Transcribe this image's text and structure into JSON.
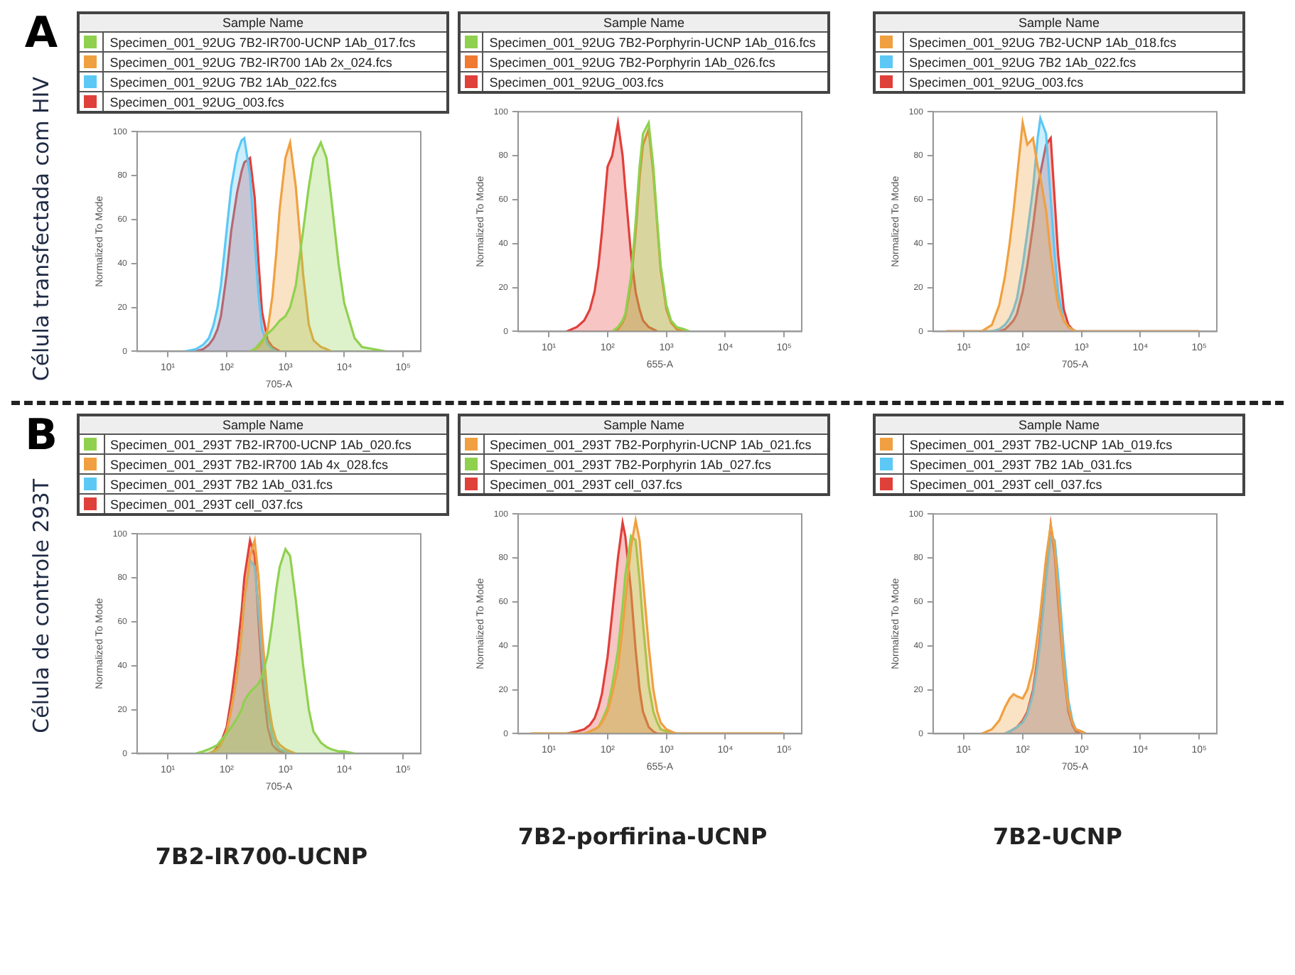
{
  "chart_data": [
    {
      "type": "area",
      "annotations": [
        "A",
        "Célula transfectada com HIV"
      ],
      "xlabel": "705-A",
      "ylabel": "Normalized To Mode",
      "legend": "top",
      "legend_title": "Sample Name",
      "log": "x",
      "xlim": [
        3,
        200000
      ],
      "xticks": [
        {
          "value": 10,
          "label": "10¹"
        },
        {
          "value": 100,
          "label": "10²"
        },
        {
          "value": 1000,
          "label": "10³"
        },
        {
          "value": 10000,
          "label": "10⁴"
        },
        {
          "value": 100000,
          "label": "10⁵"
        }
      ],
      "ylim": [
        0,
        100
      ],
      "yticks": [
        0,
        20,
        40,
        60,
        80,
        100
      ],
      "series": [
        {
          "name": "Specimen_001_92UG 7B2-IR700-UCNP 1Ab_017.fcs",
          "color": "#8fd14f",
          "x": [
            250,
            300,
            350,
            400,
            500,
            600,
            700,
            800,
            1000,
            1200,
            1500,
            2000,
            2500,
            3000,
            4000,
            5000,
            6000,
            8000,
            10000,
            15000,
            20000,
            50000
          ],
          "values": [
            0,
            1,
            3,
            5,
            8,
            10,
            12,
            14,
            16,
            20,
            30,
            55,
            75,
            88,
            95,
            88,
            70,
            40,
            22,
            6,
            2,
            0
          ]
        },
        {
          "name": "Specimen_001_92UG 7B2-IR700 1Ab 2x_024.fcs",
          "color": "#f0a040",
          "x": [
            250,
            300,
            350,
            400,
            500,
            600,
            700,
            800,
            1000,
            1200,
            1500,
            2000,
            2500,
            3000,
            4000,
            5000,
            6000
          ],
          "values": [
            0,
            1,
            2,
            4,
            10,
            25,
            45,
            65,
            88,
            95,
            75,
            35,
            12,
            5,
            2,
            1,
            0
          ]
        },
        {
          "name": "Specimen_001_92UG 7B2 1Ab_022.fcs",
          "color": "#5bc8f5",
          "x": [
            20,
            30,
            40,
            50,
            60,
            70,
            80,
            100,
            120,
            150,
            180,
            200,
            250,
            300,
            350,
            400,
            500,
            600,
            700
          ],
          "values": [
            0,
            1,
            3,
            6,
            12,
            20,
            30,
            55,
            75,
            90,
            96,
            97,
            80,
            50,
            25,
            10,
            3,
            1,
            0
          ]
        },
        {
          "name": "Specimen_001_92UG_003.fcs",
          "color": "#e0403a",
          "x": [
            30,
            40,
            50,
            60,
            70,
            80,
            100,
            120,
            150,
            180,
            200,
            250,
            300,
            350,
            400,
            500,
            600,
            700,
            800
          ],
          "values": [
            0,
            1,
            3,
            6,
            10,
            16,
            35,
            55,
            72,
            82,
            86,
            88,
            70,
            40,
            18,
            5,
            2,
            1,
            0
          ]
        }
      ]
    },
    {
      "type": "area",
      "xlabel": "655-A",
      "ylabel": "Normalized To Mode",
      "legend": "top",
      "legend_title": "Sample Name",
      "log": "x",
      "xlim": [
        3,
        200000
      ],
      "xticks": [
        {
          "value": 10,
          "label": "10¹"
        },
        {
          "value": 100,
          "label": "10²"
        },
        {
          "value": 1000,
          "label": "10³"
        },
        {
          "value": 10000,
          "label": "10⁴"
        },
        {
          "value": 100000,
          "label": "10⁵"
        }
      ],
      "ylim": [
        0,
        100
      ],
      "yticks": [
        0,
        20,
        40,
        60,
        80,
        100
      ],
      "series": [
        {
          "name": "Specimen_001_92UG 7B2-Porphyrin-UCNP 1Ab_016.fcs",
          "color": "#8fd14f",
          "x": [
            120,
            150,
            180,
            200,
            250,
            300,
            350,
            400,
            500,
            600,
            700,
            800,
            1000,
            1200,
            1500,
            2000,
            2500
          ],
          "values": [
            0,
            2,
            5,
            8,
            25,
            50,
            75,
            90,
            95,
            75,
            50,
            30,
            12,
            5,
            2,
            1,
            0
          ]
        },
        {
          "name": "Specimen_001_92UG 7B2-Porphyrin 1Ab_026.fcs",
          "color": "#f07a30",
          "x": [
            120,
            150,
            180,
            200,
            250,
            300,
            350,
            400,
            500,
            600,
            700,
            800,
            1000,
            1200,
            1500,
            2000
          ],
          "values": [
            0,
            1,
            4,
            7,
            22,
            45,
            70,
            85,
            92,
            72,
            48,
            28,
            10,
            4,
            1,
            0
          ]
        },
        {
          "name": "Specimen_001_92UG_003.fcs",
          "color": "#e0403a",
          "x": [
            20,
            30,
            40,
            50,
            60,
            70,
            80,
            100,
            120,
            150,
            180,
            200,
            250,
            300,
            350,
            400,
            500,
            600,
            700
          ],
          "values": [
            0,
            2,
            5,
            10,
            18,
            30,
            45,
            75,
            80,
            95,
            80,
            65,
            35,
            18,
            10,
            5,
            2,
            1,
            0
          ]
        }
      ]
    },
    {
      "type": "area",
      "xlabel": "705-A",
      "ylabel": "Normalized To Mode",
      "legend": "top",
      "legend_title": "Sample Name",
      "log": "x",
      "xlim": [
        3,
        200000
      ],
      "xticks": [
        {
          "value": 10,
          "label": "10¹"
        },
        {
          "value": 100,
          "label": "10²"
        },
        {
          "value": 1000,
          "label": "10³"
        },
        {
          "value": 10000,
          "label": "10⁴"
        },
        {
          "value": 100000,
          "label": "10⁵"
        }
      ],
      "ylim": [
        0,
        100
      ],
      "yticks": [
        0,
        20,
        40,
        60,
        80,
        100
      ],
      "x": [
        5,
        10,
        20,
        30,
        40,
        50,
        60,
        70,
        80,
        100,
        120,
        150,
        180,
        200,
        250,
        300,
        350,
        400,
        500,
        600,
        700,
        800,
        1000,
        1200,
        1500,
        2000,
        2500,
        3000,
        4000,
        5000,
        6000,
        8000,
        10000,
        15000,
        20000,
        50000,
        100000
      ],
      "series": [
        {
          "name": "Specimen_001_92UG 7B2-UCNP 1Ab_018.fcs",
          "color": "#f0a040",
          "values": [
            0,
            0,
            0,
            3,
            12,
            25,
            40,
            55,
            70,
            95,
            85,
            88,
            75,
            70,
            55,
            35,
            22,
            12,
            5,
            2,
            1,
            0,
            0,
            0,
            0,
            0,
            0,
            0,
            0,
            0,
            0,
            0,
            0,
            0,
            0,
            0,
            0
          ]
        },
        {
          "name": "Specimen_001_92UG 7B2 1Ab_022.fcs",
          "color": "#5bc8f5",
          "values": [
            0,
            0,
            0,
            0,
            1,
            3,
            6,
            10,
            15,
            30,
            45,
            65,
            88,
            97,
            90,
            60,
            35,
            18,
            5,
            2,
            1,
            0,
            0,
            0,
            0,
            0,
            0,
            0,
            0,
            0,
            0,
            0,
            0,
            0,
            0,
            0,
            0
          ]
        },
        {
          "name": "Specimen_001_92UG_003.fcs",
          "color": "#e0403a",
          "values": [
            0,
            0,
            0,
            0,
            0,
            1,
            3,
            5,
            8,
            18,
            30,
            48,
            65,
            72,
            85,
            88,
            60,
            35,
            10,
            3,
            1,
            0,
            0,
            0,
            0,
            0,
            0,
            0,
            0,
            0,
            0,
            0,
            0,
            0,
            0,
            0,
            0
          ]
        }
      ]
    },
    {
      "type": "area",
      "annotations": [
        "B",
        "Célula de controle 293T",
        "7B2-IR700-UCNP"
      ],
      "xlabel": "705-A",
      "ylabel": "Normalized To Mode",
      "legend": "top",
      "legend_title": "Sample Name",
      "log": "x",
      "xlim": [
        3,
        200000
      ],
      "xticks": [
        {
          "value": 10,
          "label": "10¹"
        },
        {
          "value": 100,
          "label": "10²"
        },
        {
          "value": 1000,
          "label": "10³"
        },
        {
          "value": 10000,
          "label": "10⁴"
        },
        {
          "value": 100000,
          "label": "10⁵"
        }
      ],
      "ylim": [
        0,
        100
      ],
      "yticks": [
        0,
        20,
        40,
        60,
        80,
        100
      ],
      "series": [
        {
          "name": "Specimen_001_293T 7B2-IR700-UCNP 1Ab_020.fcs",
          "color": "#8fd14f",
          "x": [
            30,
            40,
            50,
            60,
            70,
            80,
            100,
            120,
            150,
            180,
            200,
            250,
            300,
            350,
            400,
            500,
            600,
            700,
            800,
            1000,
            1200,
            1500,
            2000,
            2500,
            3000,
            4000,
            5000,
            6000,
            8000,
            10000,
            15000
          ],
          "values": [
            0,
            1,
            2,
            3,
            4,
            6,
            9,
            12,
            16,
            20,
            24,
            28,
            30,
            32,
            35,
            45,
            60,
            75,
            85,
            93,
            90,
            70,
            40,
            20,
            10,
            5,
            3,
            2,
            1,
            1,
            0
          ]
        },
        {
          "name": "Specimen_001_293T 7B2-IR700 1Ab 4x_028.fcs",
          "color": "#f0a040",
          "x": [
            50,
            60,
            70,
            80,
            100,
            120,
            150,
            180,
            200,
            250,
            300,
            350,
            400,
            500,
            600,
            700,
            800,
            1000,
            1200,
            1500
          ],
          "values": [
            0,
            1,
            2,
            4,
            10,
            20,
            35,
            55,
            70,
            90,
            97,
            80,
            55,
            25,
            12,
            6,
            4,
            2,
            1,
            0
          ]
        },
        {
          "name": "Specimen_001_293T 7B2 1Ab_031.fcs",
          "color": "#5bc8f5",
          "x": [
            50,
            60,
            70,
            80,
            100,
            120,
            150,
            180,
            200,
            250,
            300,
            350,
            400,
            500,
            600,
            700,
            800,
            1000,
            1200
          ],
          "values": [
            0,
            1,
            2,
            4,
            10,
            20,
            35,
            55,
            70,
            88,
            85,
            65,
            45,
            20,
            8,
            4,
            2,
            1,
            0
          ]
        },
        {
          "name": "Specimen_001_293T cell_037.fcs",
          "color": "#e0403a",
          "x": [
            50,
            60,
            70,
            80,
            100,
            120,
            150,
            180,
            200,
            250,
            300,
            350,
            400,
            500,
            600,
            700,
            800,
            1000
          ],
          "values": [
            0,
            1,
            3,
            5,
            12,
            25,
            45,
            65,
            80,
            97,
            90,
            60,
            35,
            12,
            4,
            2,
            1,
            0
          ]
        }
      ]
    },
    {
      "type": "area",
      "annotations": [
        "7B2-porfirina-UCNP"
      ],
      "xlabel": "655-A",
      "ylabel": "Normalized To Mode",
      "legend": "top",
      "legend_title": "Sample Name",
      "log": "x",
      "xlim": [
        3,
        200000
      ],
      "xticks": [
        {
          "value": 10,
          "label": "10¹"
        },
        {
          "value": 100,
          "label": "10²"
        },
        {
          "value": 1000,
          "label": "10³"
        },
        {
          "value": 10000,
          "label": "10⁴"
        },
        {
          "value": 100000,
          "label": "10⁵"
        }
      ],
      "ylim": [
        0,
        100
      ],
      "yticks": [
        0,
        20,
        40,
        60,
        80,
        100
      ],
      "x": [
        5,
        10,
        20,
        30,
        40,
        50,
        60,
        70,
        80,
        100,
        120,
        150,
        180,
        200,
        250,
        300,
        350,
        400,
        500,
        600,
        700,
        800,
        1000,
        1200,
        1500,
        2000,
        2500,
        3000,
        4000,
        5000,
        6000,
        8000,
        10000,
        15000,
        20000,
        50000,
        100000
      ],
      "series": [
        {
          "name": "Specimen_001_293T 7B2-Porphyrin-UCNP 1Ab_021.fcs",
          "color": "#f0a040",
          "values": [
            0,
            0,
            0,
            0,
            0,
            1,
            2,
            3,
            5,
            10,
            18,
            30,
            48,
            60,
            85,
            97,
            88,
            70,
            40,
            20,
            10,
            5,
            2,
            1,
            0,
            0,
            0,
            0,
            0,
            0,
            0,
            0,
            0,
            0,
            0,
            0,
            0
          ]
        },
        {
          "name": "Specimen_001_293T 7B2-Porphyrin 1Ab_027.fcs",
          "color": "#8fd14f",
          "values": [
            0,
            0,
            0,
            0,
            0,
            1,
            2,
            3,
            6,
            12,
            22,
            38,
            58,
            72,
            90,
            88,
            70,
            50,
            22,
            10,
            5,
            2,
            1,
            0,
            0,
            0,
            0,
            0,
            0,
            0,
            0,
            0,
            0,
            0,
            0,
            0,
            0
          ]
        },
        {
          "name": "Specimen_001_293T cell_037.fcs",
          "color": "#e0403a",
          "values": [
            0,
            0,
            0,
            1,
            2,
            4,
            7,
            12,
            18,
            35,
            55,
            80,
            96,
            90,
            65,
            38,
            20,
            10,
            3,
            1,
            0,
            0,
            0,
            0,
            0,
            0,
            0,
            0,
            0,
            0,
            0,
            0,
            0,
            0,
            0,
            0,
            0
          ]
        }
      ]
    },
    {
      "type": "area",
      "annotations": [
        "7B2-UCNP"
      ],
      "xlabel": "705-A",
      "ylabel": "Normalized To Mode",
      "legend": "top",
      "legend_title": "Sample Name",
      "log": "x",
      "xlim": [
        3,
        200000
      ],
      "xticks": [
        {
          "value": 10,
          "label": "10¹"
        },
        {
          "value": 100,
          "label": "10²"
        },
        {
          "value": 1000,
          "label": "10³"
        },
        {
          "value": 10000,
          "label": "10⁴"
        },
        {
          "value": 100000,
          "label": "10⁵"
        }
      ],
      "ylim": [
        0,
        100
      ],
      "yticks": [
        0,
        20,
        40,
        60,
        80,
        100
      ],
      "series": [
        {
          "name": "Specimen_001_293T 7B2-UCNP 1Ab_019.fcs",
          "color": "#f0a040",
          "x": [
            20,
            30,
            40,
            50,
            60,
            70,
            80,
            100,
            120,
            150,
            180,
            200,
            250,
            300,
            350,
            400,
            500,
            600,
            700,
            800,
            1000,
            1200
          ],
          "values": [
            0,
            2,
            6,
            12,
            16,
            18,
            17,
            16,
            20,
            30,
            45,
            55,
            80,
            95,
            85,
            65,
            30,
            12,
            5,
            2,
            1,
            0
          ]
        },
        {
          "name": "Specimen_001_293T 7B2 1Ab_031.fcs",
          "color": "#5bc8f5",
          "x": [
            50,
            60,
            70,
            80,
            100,
            120,
            150,
            180,
            200,
            250,
            300,
            350,
            400,
            500,
            600,
            700,
            800,
            1000,
            1200
          ],
          "values": [
            0,
            1,
            2,
            3,
            5,
            9,
            18,
            32,
            42,
            70,
            90,
            88,
            72,
            38,
            15,
            6,
            2,
            1,
            0
          ]
        },
        {
          "name": "Specimen_001_293T cell_037.fcs",
          "color": "#e0403a",
          "x": [
            50,
            60,
            70,
            80,
            100,
            120,
            150,
            180,
            200,
            250,
            300,
            350,
            400,
            500,
            600,
            700,
            800,
            1000
          ],
          "values": [
            0,
            1,
            2,
            3,
            6,
            10,
            20,
            35,
            45,
            75,
            95,
            82,
            60,
            28,
            10,
            4,
            1,
            0
          ]
        }
      ]
    }
  ]
}
